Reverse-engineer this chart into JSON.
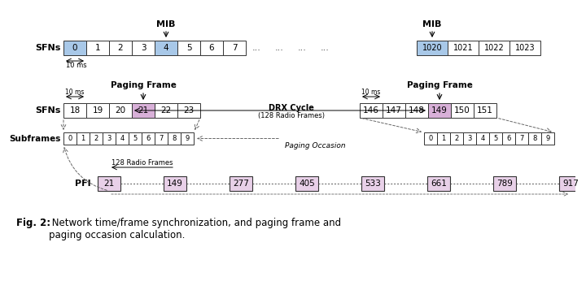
{
  "bg": "#ffffff",
  "row1_sfn_cells": [
    "0",
    "1",
    "2",
    "3",
    "4",
    "5",
    "6",
    "7"
  ],
  "row1_sfn_highlights": {
    "0": "#a8c8e8",
    "4": "#a8c8e8"
  },
  "row1_right_cells": [
    "1020",
    "1021",
    "1022",
    "1023"
  ],
  "row1_right_highlights": {
    "0": "#a8c8e8"
  },
  "row2_left_cells": [
    "18",
    "19",
    "20",
    "21",
    "22",
    "23"
  ],
  "row2_left_highlights": {
    "3": "#d8b0d8"
  },
  "row2_right_cells": [
    "146",
    "147",
    "148",
    "149",
    "150",
    "151"
  ],
  "row2_right_highlights": {
    "3": "#d8b0d8"
  },
  "subframes": [
    "0",
    "1",
    "2",
    "3",
    "4",
    "5",
    "6",
    "7",
    "8",
    "9"
  ],
  "pfi_values": [
    "21",
    "149",
    "277",
    "405",
    "533",
    "661",
    "789",
    "917"
  ],
  "pfi_color": "#e8d0e8",
  "caption_bold": "Fig. 2:",
  "caption_rest": " Network time/frame synchronization, and paging frame and\npaging occasion calculation."
}
